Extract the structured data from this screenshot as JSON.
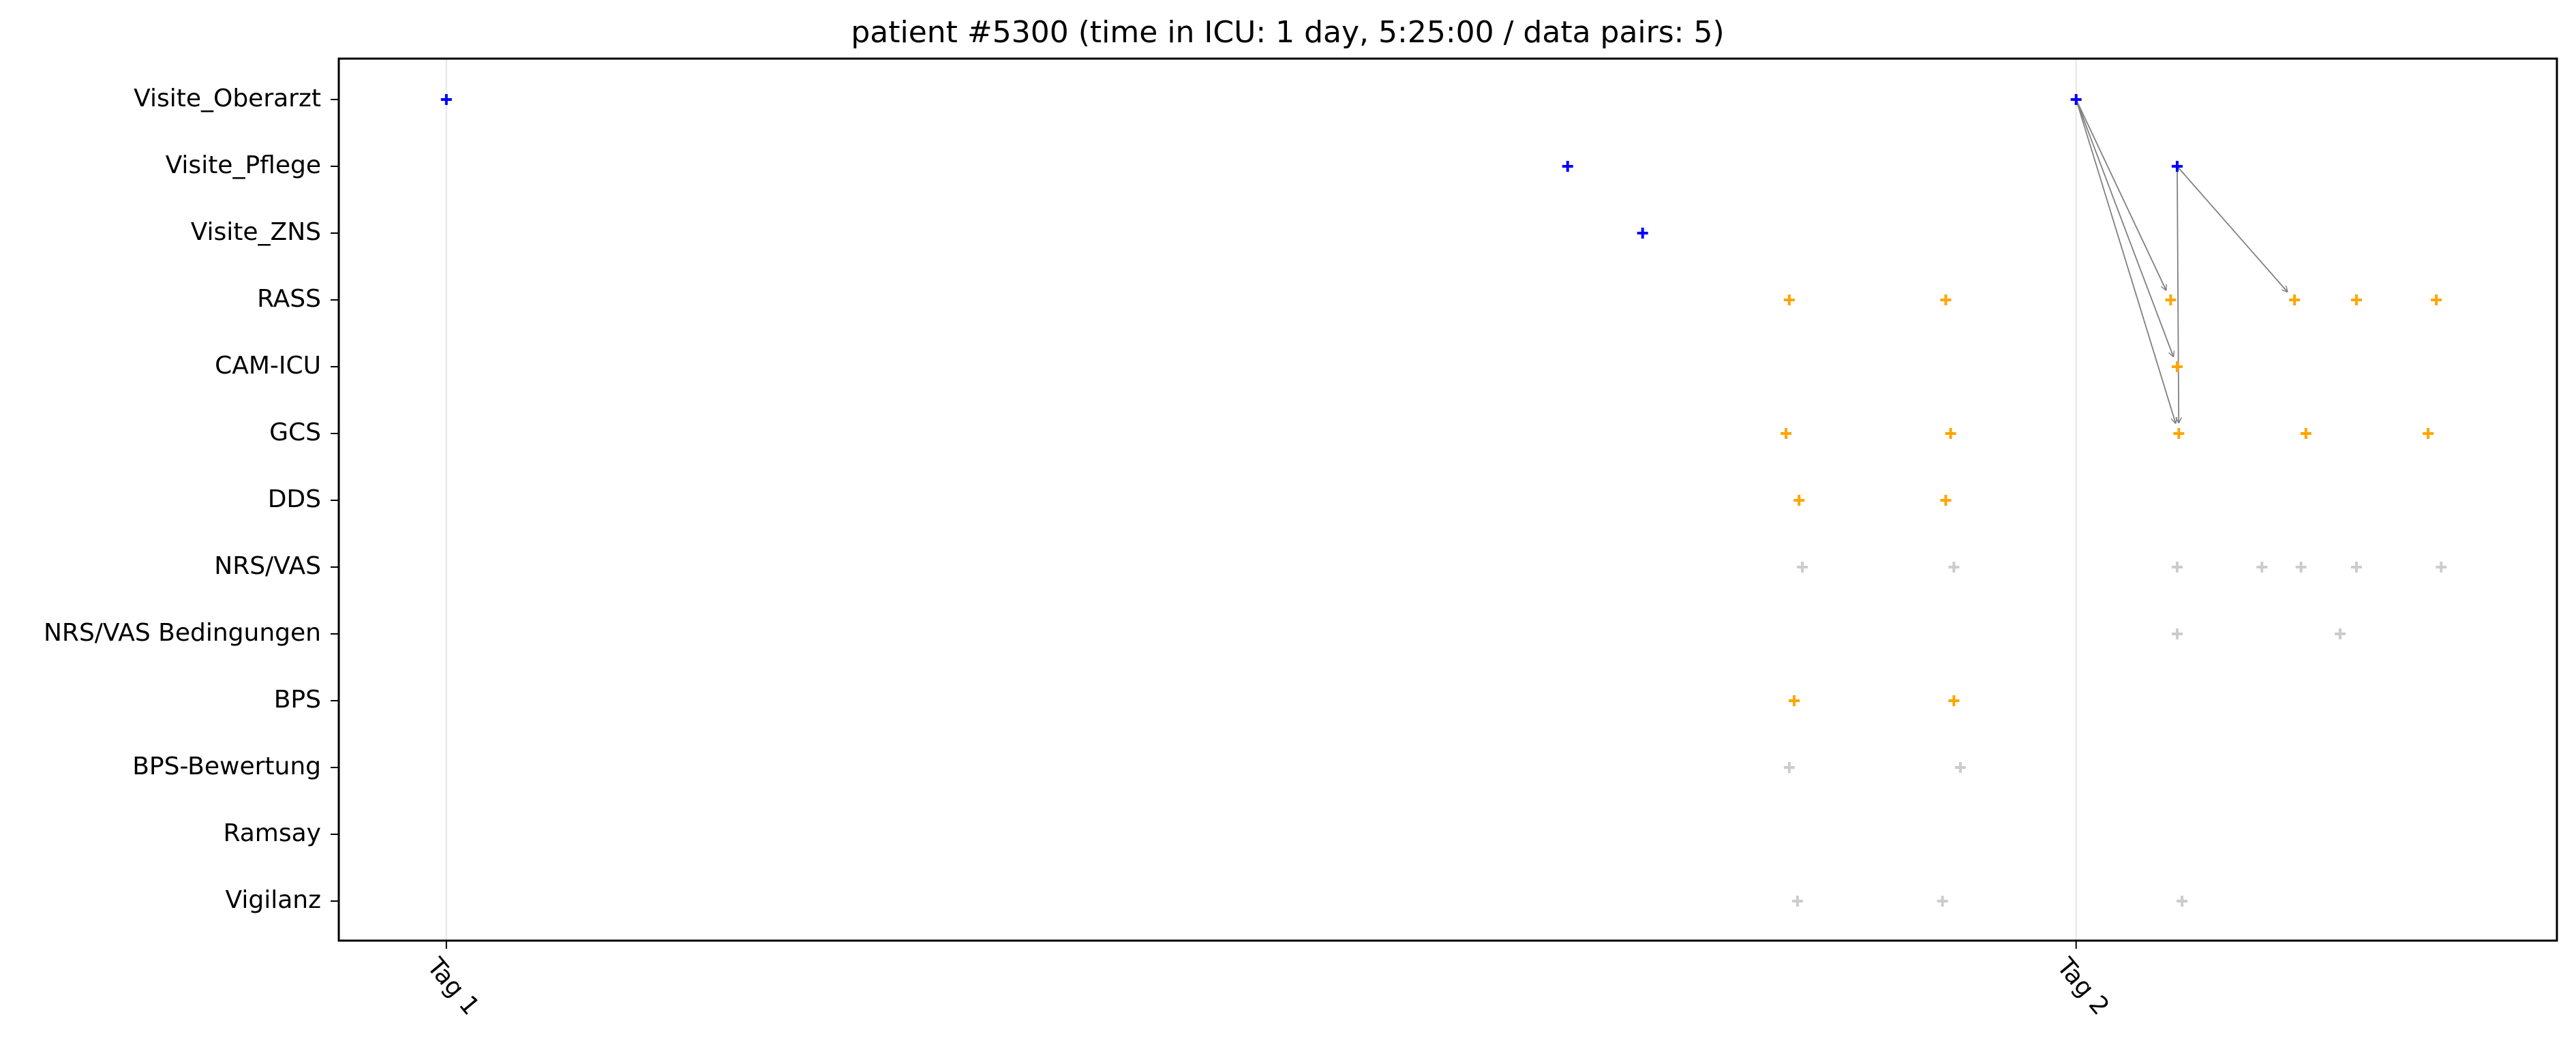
{
  "chart_data": {
    "type": "scatter",
    "title": "patient #5300 (time in ICU: 1 day, 5:25:00 / data pairs: 5)",
    "xlabel": "",
    "ylabel": "",
    "grid": false,
    "categories": [
      "Visite_Oberarzt",
      "Visite_Pflege",
      "Visite_ZNS",
      "RASS",
      "CAM-ICU",
      "GCS",
      "DDS",
      "NRS/VAS",
      "NRS/VAS Bedingungen",
      "BPS",
      "BPS-Bewertung",
      "Ramsay",
      "Vigilanz"
    ],
    "x_unit": "days from Tag 1",
    "xlim": [
      -0.066,
      1.295
    ],
    "x_ticks": [
      {
        "label": "Tag 1",
        "value": 0
      },
      {
        "label": "Tag 2",
        "value": 1
      }
    ],
    "colors": {
      "visit": "#0000ff",
      "score": "#ffa500",
      "other": "#cccccc",
      "arrow": "#808080",
      "day_line": "#e6e6e6"
    },
    "points": [
      {
        "cat": "Visite_Oberarzt",
        "x": 0.0,
        "color": "visit"
      },
      {
        "cat": "Visite_Oberarzt",
        "x": 1.0,
        "color": "visit"
      },
      {
        "cat": "Visite_Pflege",
        "x": 0.688,
        "color": "visit"
      },
      {
        "cat": "Visite_Pflege",
        "x": 1.062,
        "color": "visit"
      },
      {
        "cat": "Visite_ZNS",
        "x": 0.734,
        "color": "visit"
      },
      {
        "cat": "RASS",
        "x": 0.824,
        "color": "score"
      },
      {
        "cat": "RASS",
        "x": 0.92,
        "color": "score"
      },
      {
        "cat": "RASS",
        "x": 1.058,
        "color": "score"
      },
      {
        "cat": "RASS",
        "x": 1.134,
        "color": "score"
      },
      {
        "cat": "RASS",
        "x": 1.172,
        "color": "score"
      },
      {
        "cat": "RASS",
        "x": 1.221,
        "color": "score"
      },
      {
        "cat": "CAM-ICU",
        "x": 1.062,
        "color": "score"
      },
      {
        "cat": "GCS",
        "x": 0.822,
        "color": "score"
      },
      {
        "cat": "GCS",
        "x": 0.923,
        "color": "score"
      },
      {
        "cat": "GCS",
        "x": 1.063,
        "color": "score"
      },
      {
        "cat": "GCS",
        "x": 1.141,
        "color": "score"
      },
      {
        "cat": "GCS",
        "x": 1.216,
        "color": "score"
      },
      {
        "cat": "DDS",
        "x": 0.83,
        "color": "score"
      },
      {
        "cat": "DDS",
        "x": 0.92,
        "color": "score"
      },
      {
        "cat": "NRS/VAS",
        "x": 0.832,
        "color": "other"
      },
      {
        "cat": "NRS/VAS",
        "x": 0.925,
        "color": "other"
      },
      {
        "cat": "NRS/VAS",
        "x": 1.062,
        "color": "other"
      },
      {
        "cat": "NRS/VAS",
        "x": 1.114,
        "color": "other"
      },
      {
        "cat": "NRS/VAS",
        "x": 1.138,
        "color": "other"
      },
      {
        "cat": "NRS/VAS",
        "x": 1.172,
        "color": "other"
      },
      {
        "cat": "NRS/VAS",
        "x": 1.224,
        "color": "other"
      },
      {
        "cat": "NRS/VAS Bedingungen",
        "x": 1.062,
        "color": "other"
      },
      {
        "cat": "NRS/VAS Bedingungen",
        "x": 1.162,
        "color": "other"
      },
      {
        "cat": "BPS",
        "x": 0.827,
        "color": "score"
      },
      {
        "cat": "BPS",
        "x": 0.925,
        "color": "score"
      },
      {
        "cat": "BPS-Bewertung",
        "x": 0.824,
        "color": "other"
      },
      {
        "cat": "BPS-Bewertung",
        "x": 0.929,
        "color": "other"
      },
      {
        "cat": "Vigilanz",
        "x": 0.829,
        "color": "other"
      },
      {
        "cat": "Vigilanz",
        "x": 0.918,
        "color": "other"
      },
      {
        "cat": "Vigilanz",
        "x": 1.065,
        "color": "other"
      }
    ],
    "arrows": [
      {
        "from": {
          "cat": "Visite_Oberarzt",
          "x": 1.0
        },
        "to": {
          "cat": "RASS",
          "x": 1.058
        }
      },
      {
        "from": {
          "cat": "Visite_Oberarzt",
          "x": 1.0
        },
        "to": {
          "cat": "CAM-ICU",
          "x": 1.062
        }
      },
      {
        "from": {
          "cat": "Visite_Oberarzt",
          "x": 1.0
        },
        "to": {
          "cat": "GCS",
          "x": 1.063
        }
      },
      {
        "from": {
          "cat": "Visite_Pflege",
          "x": 1.062
        },
        "to": {
          "cat": "GCS",
          "x": 1.063
        }
      },
      {
        "from": {
          "cat": "Visite_Pflege",
          "x": 1.062
        },
        "to": {
          "cat": "RASS",
          "x": 1.134
        }
      }
    ]
  }
}
